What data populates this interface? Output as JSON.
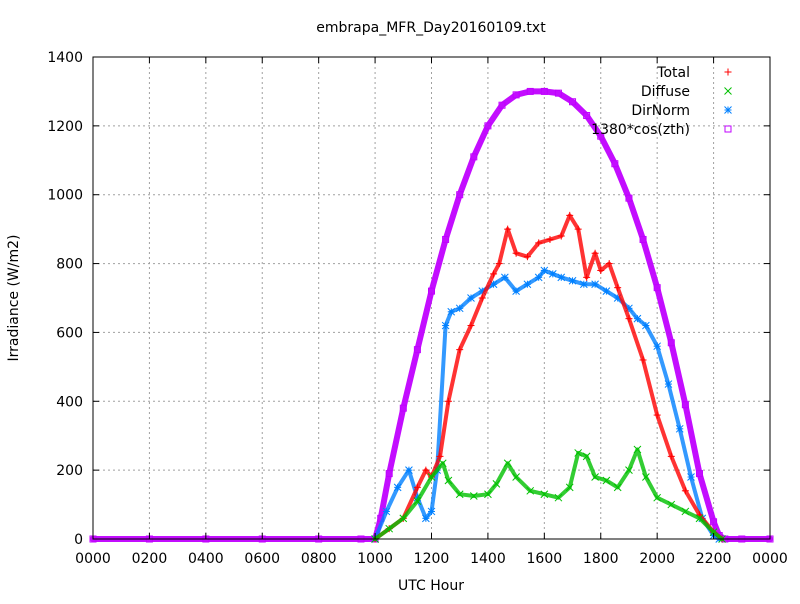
{
  "chart_data": {
    "type": "scatter",
    "title": "embrapa_MFR_Day20160109.txt",
    "xlabel": "UTC Hour",
    "ylabel": "Irradiance (W/m2)",
    "xlim": [
      0,
      24
    ],
    "ylim": [
      0,
      1400
    ],
    "x_tick_labels": [
      "0000",
      "0200",
      "0400",
      "0600",
      "0800",
      "1000",
      "1200",
      "1400",
      "1600",
      "1800",
      "2000",
      "2200",
      "0000"
    ],
    "y_tick_labels": [
      "0",
      "200",
      "400",
      "600",
      "800",
      "1000",
      "1200",
      "1400"
    ],
    "grid": true,
    "legend_position": "top-right",
    "colors": {
      "total": "#ff0000",
      "diffuse": "#00c000",
      "dirnorm": "#0080ff",
      "cos": "#c000ff"
    },
    "series": [
      {
        "name": "Total",
        "marker": "plus",
        "x": [
          10.0,
          10.5,
          11.0,
          11.5,
          11.8,
          12.0,
          12.3,
          12.6,
          13.0,
          13.4,
          13.8,
          14.2,
          14.4,
          14.7,
          15.0,
          15.4,
          15.8,
          16.2,
          16.6,
          16.9,
          17.2,
          17.5,
          17.8,
          18.0,
          18.3,
          18.6,
          19.0,
          19.5,
          20.0,
          20.5,
          21.0,
          21.5,
          22.0,
          22.3
        ],
        "y": [
          0,
          30,
          60,
          150,
          200,
          180,
          240,
          400,
          550,
          620,
          700,
          770,
          800,
          900,
          830,
          820,
          860,
          870,
          880,
          940,
          900,
          760,
          830,
          780,
          800,
          730,
          640,
          520,
          360,
          240,
          140,
          70,
          20,
          0
        ]
      },
      {
        "name": "Diffuse",
        "marker": "cross",
        "x": [
          10.0,
          10.5,
          11.0,
          11.5,
          12.0,
          12.4,
          12.6,
          13.0,
          13.5,
          14.0,
          14.3,
          14.7,
          15.0,
          15.5,
          16.0,
          16.5,
          16.9,
          17.2,
          17.5,
          17.8,
          18.2,
          18.6,
          19.0,
          19.3,
          19.6,
          20.0,
          20.5,
          21.0,
          21.5,
          22.0,
          22.3
        ],
        "y": [
          0,
          30,
          60,
          110,
          180,
          220,
          170,
          130,
          125,
          130,
          160,
          220,
          180,
          140,
          130,
          120,
          150,
          250,
          240,
          180,
          170,
          150,
          200,
          260,
          180,
          120,
          100,
          80,
          60,
          20,
          0
        ]
      },
      {
        "name": "DirNorm",
        "marker": "star",
        "x": [
          10.0,
          10.4,
          10.8,
          11.2,
          11.5,
          11.8,
          12.0,
          12.2,
          12.5,
          12.7,
          13.0,
          13.4,
          13.8,
          14.2,
          14.6,
          15.0,
          15.4,
          15.8,
          16.0,
          16.3,
          16.6,
          17.0,
          17.4,
          17.8,
          18.2,
          18.6,
          19.0,
          19.3,
          19.6,
          20.0,
          20.4,
          20.8,
          21.2,
          21.6,
          22.0,
          22.2
        ],
        "y": [
          0,
          80,
          150,
          200,
          120,
          60,
          80,
          200,
          620,
          660,
          670,
          700,
          720,
          740,
          760,
          720,
          740,
          760,
          780,
          770,
          760,
          750,
          740,
          740,
          720,
          700,
          670,
          640,
          620,
          560,
          450,
          320,
          180,
          60,
          10,
          0
        ]
      },
      {
        "name": "1380*cos(zth)",
        "marker": "square",
        "x": [
          0,
          2,
          4,
          6,
          8,
          9.5,
          10.0,
          10.2,
          10.5,
          11.0,
          11.5,
          12.0,
          12.5,
          13.0,
          13.5,
          14.0,
          14.5,
          15.0,
          15.5,
          16.0,
          16.5,
          17.0,
          17.5,
          18.0,
          18.5,
          19.0,
          19.5,
          20.0,
          20.5,
          21.0,
          21.5,
          22.0,
          22.2,
          22.4,
          23,
          24
        ],
        "y": [
          0,
          0,
          0,
          0,
          0,
          0,
          0,
          60,
          190,
          380,
          550,
          720,
          870,
          1000,
          1110,
          1200,
          1260,
          1290,
          1300,
          1300,
          1295,
          1270,
          1230,
          1170,
          1090,
          990,
          870,
          730,
          570,
          390,
          190,
          50,
          10,
          0,
          0,
          0
        ]
      }
    ]
  }
}
